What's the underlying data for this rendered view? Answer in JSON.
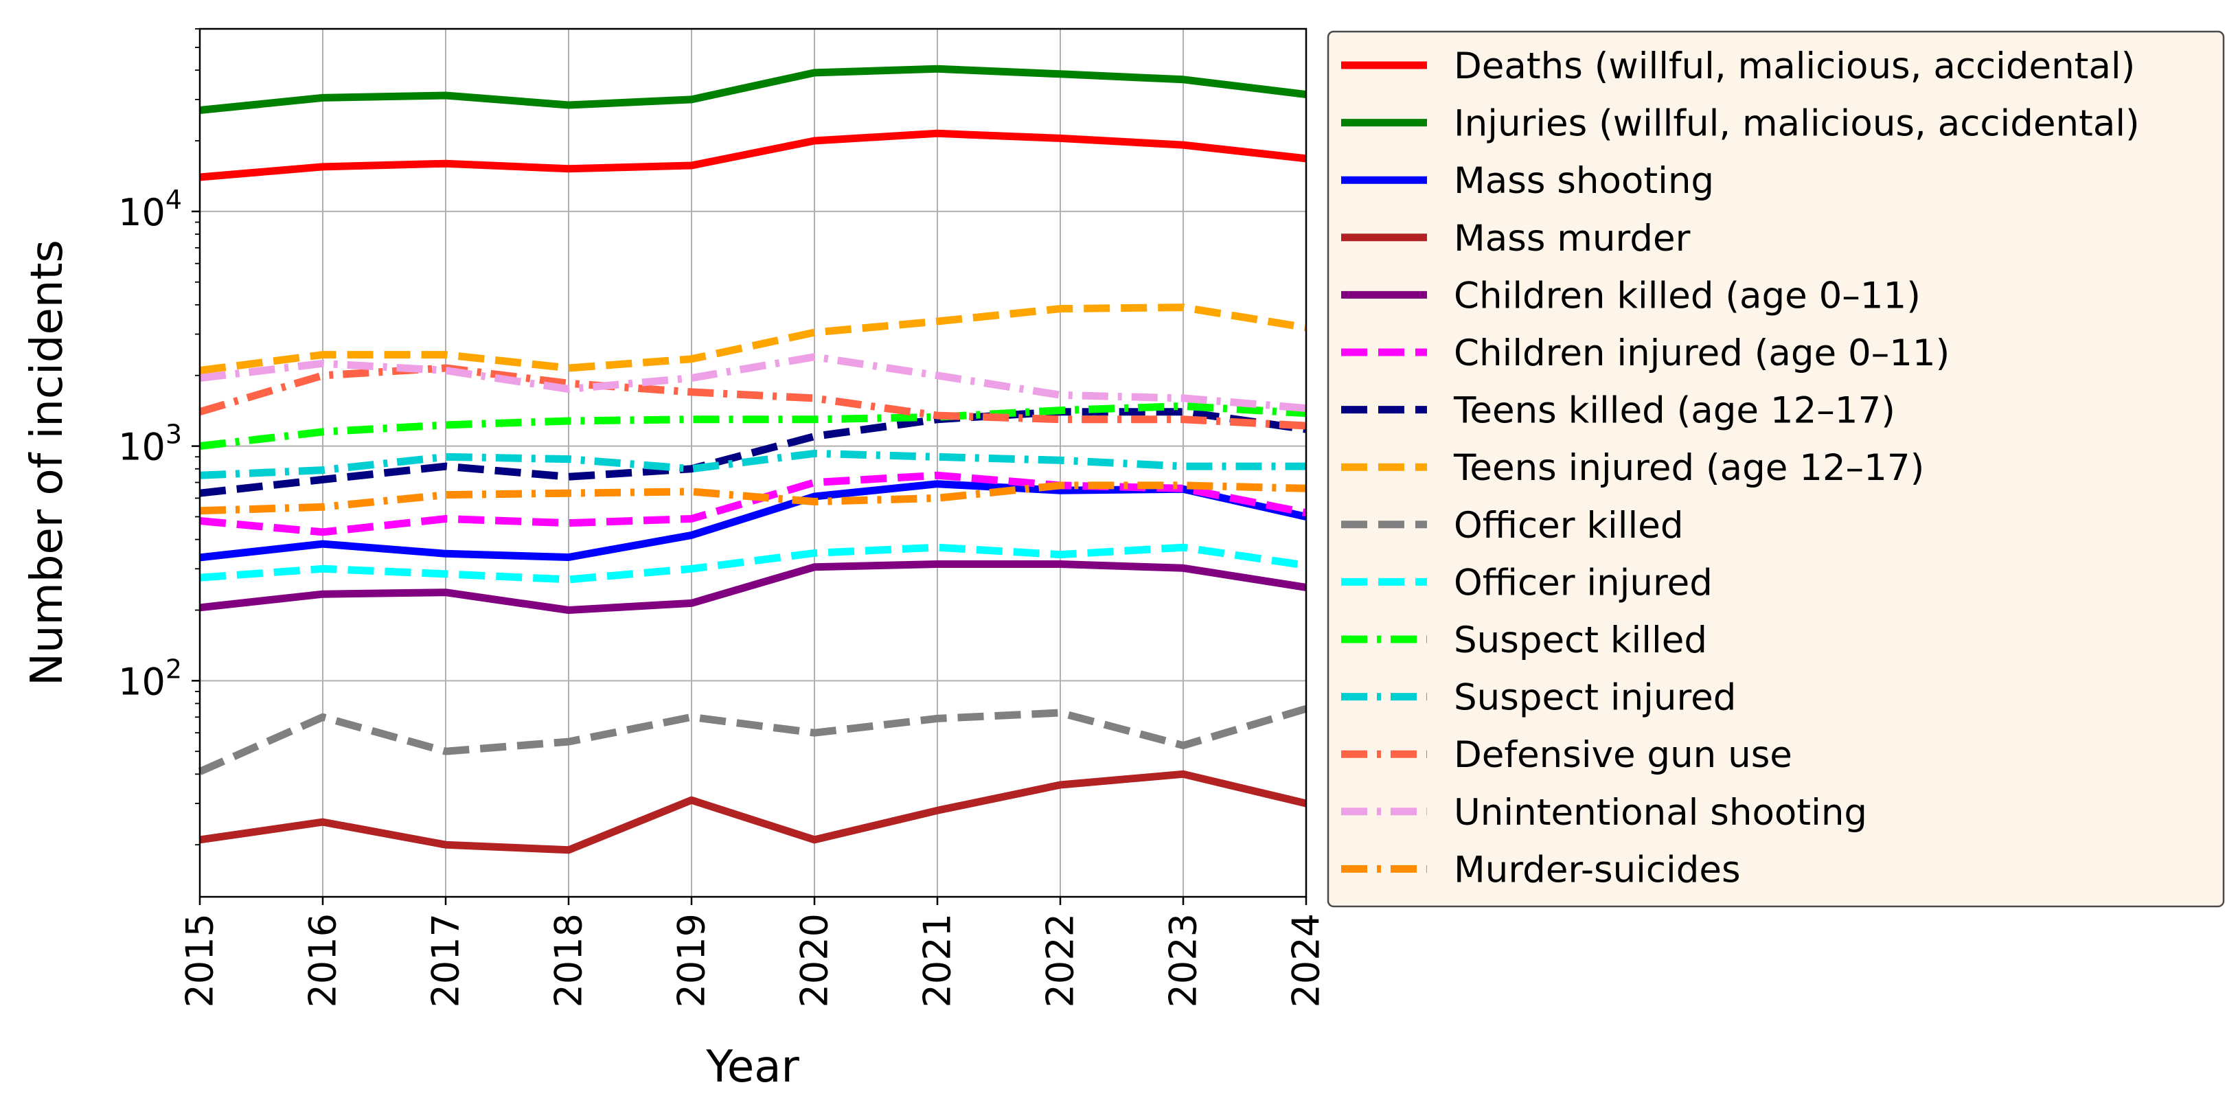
{
  "chart_data": {
    "type": "line",
    "title": "",
    "xlabel": "Year",
    "ylabel": "Number of incidents",
    "yscale": "log",
    "ylim": [
      12,
      60000
    ],
    "xlim": [
      2015,
      2024
    ],
    "grid": true,
    "legend_position": "right",
    "x": [
      2015,
      2016,
      2017,
      2018,
      2019,
      2020,
      2021,
      2022,
      2023,
      2024
    ],
    "x_tick_labels": [
      "2015",
      "2016",
      "2017",
      "2018",
      "2019",
      "2020",
      "2021",
      "2022",
      "2023",
      "2024"
    ],
    "y_ticks": [
      {
        "value": 100,
        "base": "10",
        "exp": "2"
      },
      {
        "value": 1000,
        "base": "10",
        "exp": "3"
      },
      {
        "value": 10000,
        "base": "10",
        "exp": "4"
      }
    ],
    "series": [
      {
        "name": "Deaths (willful, malicious, accidental)",
        "color": "#ff0000",
        "dash": "solid",
        "values": [
          14000,
          15500,
          16000,
          15200,
          15700,
          20000,
          21500,
          20500,
          19200,
          16800
        ]
      },
      {
        "name": "Injuries (willful, malicious, accidental)",
        "color": "#008000",
        "dash": "solid",
        "values": [
          27000,
          30500,
          31200,
          28400,
          30000,
          39000,
          40500,
          38500,
          36500,
          31500
        ]
      },
      {
        "name": "Mass shooting",
        "color": "#0000ff",
        "dash": "solid",
        "values": [
          335,
          383,
          348,
          336,
          417,
          610,
          690,
          647,
          656,
          500
        ]
      },
      {
        "name": "Mass murder",
        "color": "#b22222",
        "dash": "solid",
        "values": [
          21,
          25,
          20,
          19,
          31,
          21,
          28,
          36,
          40,
          30
        ]
      },
      {
        "name": "Children killed (age 0–11)",
        "color": "#800080",
        "dash": "solid",
        "values": [
          205,
          234,
          238,
          200,
          214,
          305,
          314,
          314,
          302,
          250
        ]
      },
      {
        "name": "Children injured (age 0–11)",
        "color": "#ff00ff",
        "dash": "dashed",
        "values": [
          480,
          430,
          490,
          470,
          490,
          700,
          750,
          680,
          660,
          520
        ]
      },
      {
        "name": "Teens killed (age 12–17)",
        "color": "#000080",
        "dash": "dashed",
        "values": [
          630,
          720,
          820,
          740,
          800,
          1100,
          1300,
          1400,
          1400,
          1180
        ]
      },
      {
        "name": "Teens injured (age 12–17)",
        "color": "#ffa500",
        "dash": "dashed",
        "values": [
          2100,
          2450,
          2450,
          2150,
          2350,
          3050,
          3400,
          3850,
          3900,
          3200
        ]
      },
      {
        "name": "Officer killed",
        "color": "#808080",
        "dash": "dashed",
        "values": [
          41,
          70,
          50,
          55,
          70,
          60,
          69,
          73,
          53,
          76
        ]
      },
      {
        "name": "Officer injured",
        "color": "#00ffff",
        "dash": "dashed",
        "values": [
          275,
          300,
          285,
          270,
          300,
          350,
          370,
          345,
          370,
          310
        ]
      },
      {
        "name": "Suspect killed",
        "color": "#00ff00",
        "dash": "dashdot",
        "values": [
          1000,
          1150,
          1230,
          1280,
          1300,
          1300,
          1330,
          1420,
          1480,
          1380
        ]
      },
      {
        "name": "Suspect injured",
        "color": "#00ced1",
        "dash": "dashdot",
        "values": [
          750,
          790,
          900,
          880,
          800,
          930,
          900,
          870,
          820,
          820
        ]
      },
      {
        "name": "Defensive gun use",
        "color": "#ff6347",
        "dash": "dashdot",
        "values": [
          1400,
          2000,
          2150,
          1850,
          1700,
          1600,
          1350,
          1300,
          1300,
          1220
        ]
      },
      {
        "name": "Unintentional shooting",
        "color": "#eea0e6",
        "dash": "dashdot",
        "values": [
          1950,
          2250,
          2100,
          1750,
          1950,
          2400,
          2000,
          1650,
          1600,
          1450
        ]
      },
      {
        "name": "Murder-suicides",
        "color": "#ff8c00",
        "dash": "dashdot",
        "values": [
          530,
          550,
          620,
          630,
          640,
          580,
          600,
          680,
          680,
          660
        ]
      }
    ]
  }
}
